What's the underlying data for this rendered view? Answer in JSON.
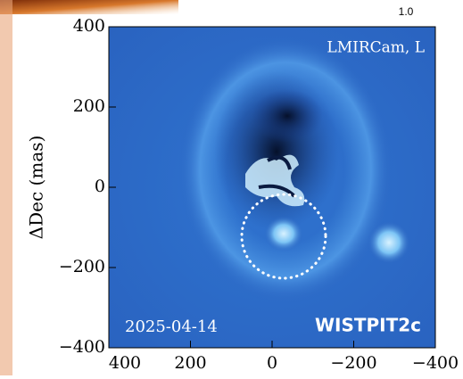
{
  "chart_data": {
    "type": "image",
    "ylabel": "ΔDec (mas)",
    "instrument_label": "LMIRCam, L",
    "date_label": "2025-04-14",
    "target_label": "WISTPIT2c",
    "colorbar_label": "1.0",
    "xlim": [
      400,
      -400
    ],
    "ylim": [
      -400,
      400
    ],
    "xticks": [
      400,
      200,
      0,
      {
        "value": -200,
        "label": "−200"
      },
      {
        "value": -400,
        "label": "−400"
      }
    ],
    "yticks": [
      400,
      200,
      0,
      {
        "value": -200,
        "label": "−200"
      },
      {
        "value": -400,
        "label": "−400"
      }
    ]
  }
}
